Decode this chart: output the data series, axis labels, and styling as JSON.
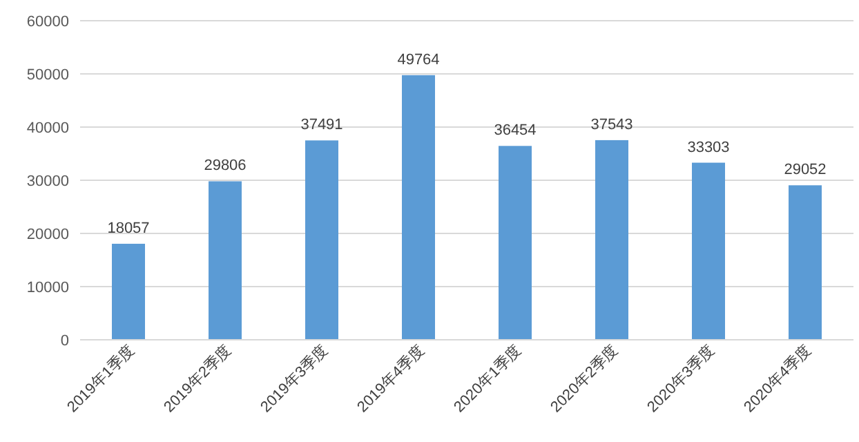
{
  "chart_data": {
    "type": "bar",
    "categories": [
      "2019年1季度",
      "2019年2季度",
      "2019年3季度",
      "2019年4季度",
      "2020年1季度",
      "2020年2季度",
      "2020年3季度",
      "2020年4季度"
    ],
    "values": [
      18057,
      29806,
      37491,
      49764,
      36454,
      37543,
      33303,
      29052
    ],
    "color": "#5b9bd5",
    "ylim": [
      0,
      60000
    ],
    "yticks": [
      0,
      10000,
      20000,
      30000,
      40000,
      50000,
      60000
    ],
    "grid": "y",
    "data_labels": true
  }
}
